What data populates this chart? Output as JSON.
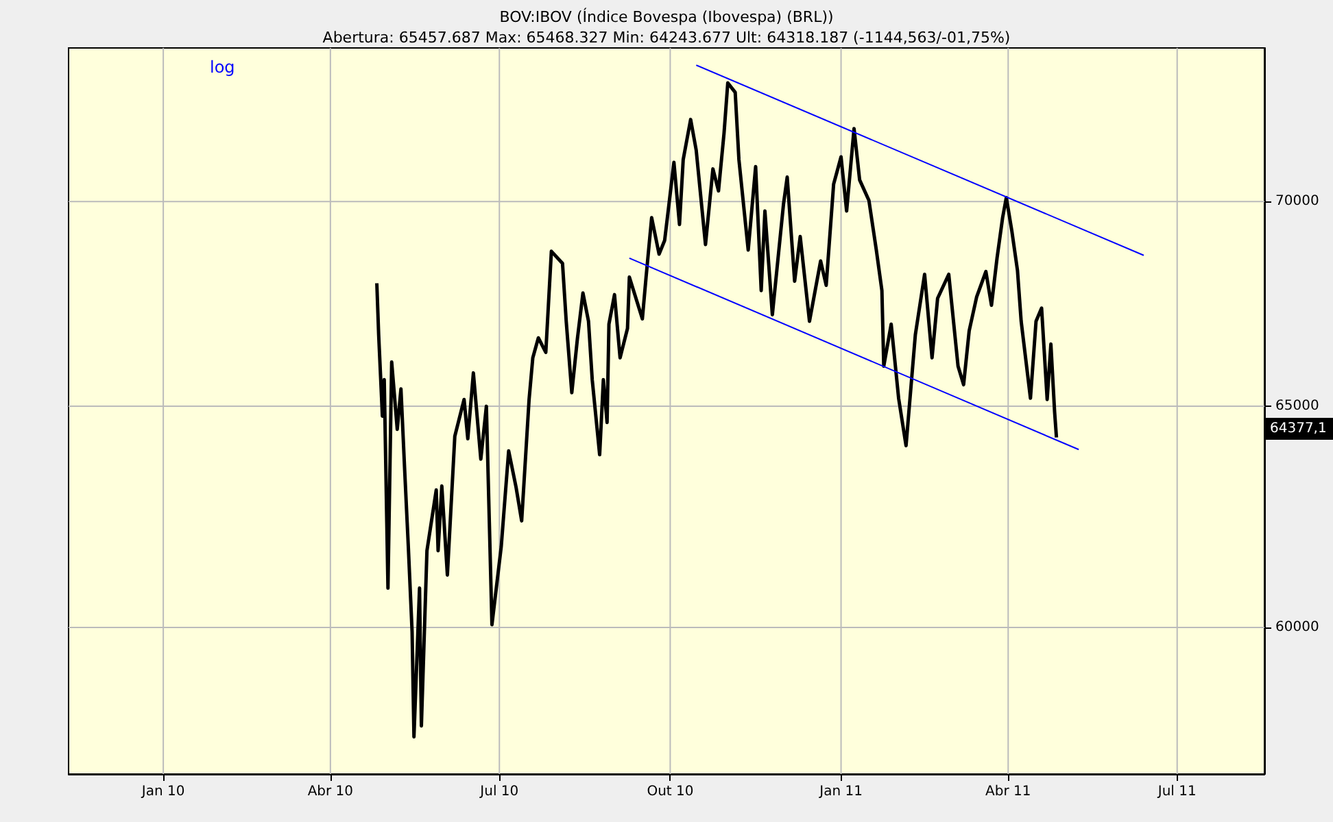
{
  "chart_data": {
    "type": "line",
    "title": "BOV:IBOV (Índice Bovespa (Ibovespa) (BRL))",
    "subtitle": "Abertura: 65457.687 Max: 65468.327 Min: 64243.677 Ult: 64318.187 (-1144,563/-01,75%)",
    "annotations": [
      "log",
      "64377,1"
    ],
    "log": "y",
    "grid": true,
    "xlim": [
      "2009-11-11",
      "2011-08-17"
    ],
    "xticks": [
      {
        "value": "2010-01-01",
        "label": "Jan 10"
      },
      {
        "value": "2010-04-01",
        "label": "Abr 10"
      },
      {
        "value": "2010-07-01",
        "label": "Jul 10"
      },
      {
        "value": "2010-10-01",
        "label": "Out 10"
      },
      {
        "value": "2011-01-01",
        "label": "Jan 11"
      },
      {
        "value": "2011-04-01",
        "label": "Abr 11"
      },
      {
        "value": "2011-07-01",
        "label": "Jul 11"
      }
    ],
    "ylim": [
      56900,
      74000
    ],
    "yticks": [
      60000,
      65000,
      70000
    ],
    "series": [
      {
        "color": "#000000",
        "x": [
          "2010-04-26",
          "2010-04-27",
          "2010-04-29",
          "2010-04-30",
          "2010-05-02",
          "2010-05-04",
          "2010-05-07",
          "2010-05-09",
          "2010-05-11",
          "2010-05-13",
          "2010-05-15",
          "2010-05-16",
          "2010-05-19",
          "2010-05-20",
          "2010-05-23",
          "2010-05-28",
          "2010-05-29",
          "2010-05-31",
          "2010-06-03",
          "2010-06-07",
          "2010-06-12",
          "2010-06-14",
          "2010-06-17",
          "2010-06-21",
          "2010-06-24",
          "2010-06-27",
          "2010-07-02",
          "2010-07-06",
          "2010-07-10",
          "2010-07-13",
          "2010-07-17",
          "2010-07-19",
          "2010-07-22",
          "2010-07-26",
          "2010-07-29",
          "2010-08-04",
          "2010-08-06",
          "2010-08-09",
          "2010-08-12",
          "2010-08-15",
          "2010-08-18",
          "2010-08-20",
          "2010-08-24",
          "2010-08-26",
          "2010-08-28",
          "2010-08-29",
          "2010-09-01",
          "2010-09-04",
          "2010-09-08",
          "2010-09-09",
          "2010-09-16",
          "2010-09-18",
          "2010-09-21",
          "2010-09-25",
          "2010-09-28",
          "2010-09-30",
          "2010-10-03",
          "2010-10-06",
          "2010-10-08",
          "2010-10-12",
          "2010-10-15",
          "2010-10-20",
          "2010-10-24",
          "2010-10-27",
          "2010-10-30",
          "2010-11-01",
          "2010-11-05",
          "2010-11-07",
          "2010-11-12",
          "2010-11-16",
          "2010-11-19",
          "2010-11-21",
          "2010-11-25",
          "2010-12-01",
          "2010-12-03",
          "2010-12-07",
          "2010-12-10",
          "2010-12-15",
          "2010-12-21",
          "2010-12-24",
          "2010-12-28",
          "2011-01-01",
          "2011-01-04",
          "2011-01-08",
          "2011-01-11",
          "2011-01-16",
          "2011-01-20",
          "2011-01-23",
          "2011-01-24",
          "2011-01-28",
          "2011-02-01",
          "2011-02-05",
          "2011-02-10",
          "2011-02-15",
          "2011-02-19",
          "2011-02-22",
          "2011-02-28",
          "2011-03-05",
          "2011-03-08",
          "2011-03-11",
          "2011-03-15",
          "2011-03-20",
          "2011-03-23",
          "2011-03-26",
          "2011-03-29",
          "2011-03-31",
          "2011-04-03",
          "2011-04-06",
          "2011-04-08",
          "2011-04-13",
          "2011-04-16",
          "2011-04-19",
          "2011-04-22",
          "2011-04-24",
          "2011-04-26",
          "2011-04-27"
        ],
        "values": [
          67960,
          66700,
          64770,
          65630,
          60860,
          66050,
          64460,
          65410,
          63520,
          61750,
          59910,
          57670,
          60860,
          57900,
          61690,
          63060,
          61690,
          63150,
          61150,
          64300,
          65160,
          64240,
          65790,
          63770,
          65000,
          60060,
          61780,
          63960,
          63120,
          62360,
          65160,
          66150,
          66630,
          66280,
          68750,
          68450,
          67030,
          65320,
          66600,
          67720,
          67030,
          65630,
          63870,
          65630,
          64620,
          66960,
          67680,
          66150,
          66860,
          68110,
          67090,
          68110,
          69590,
          68680,
          69020,
          69800,
          71000,
          69420,
          71070,
          72110,
          71310,
          68920,
          70830,
          70270,
          71760,
          73070,
          72820,
          71070,
          68780,
          70890,
          67780,
          69760,
          67190,
          69930,
          70620,
          68010,
          69120,
          67030,
          68510,
          67910,
          70440,
          71140,
          69760,
          71870,
          70550,
          70030,
          68780,
          67780,
          65950,
          66960,
          65190,
          64080,
          66700,
          68180,
          66150,
          67590,
          68180,
          65950,
          65510,
          66800,
          67620,
          68250,
          67420,
          68580,
          69590,
          70100,
          69250,
          68280,
          67030,
          65190,
          67030,
          67350,
          65160,
          66480,
          64870,
          64270
        ]
      },
      {
        "type": "line",
        "color": "#0000ff",
        "x": [
          "2010-10-15",
          "2011-06-13"
        ],
        "values": [
          73540,
          68650
        ]
      },
      {
        "type": "line",
        "color": "#0000ff",
        "x": [
          "2010-09-09",
          "2011-05-09"
        ],
        "values": [
          68580,
          63990
        ]
      }
    ]
  }
}
